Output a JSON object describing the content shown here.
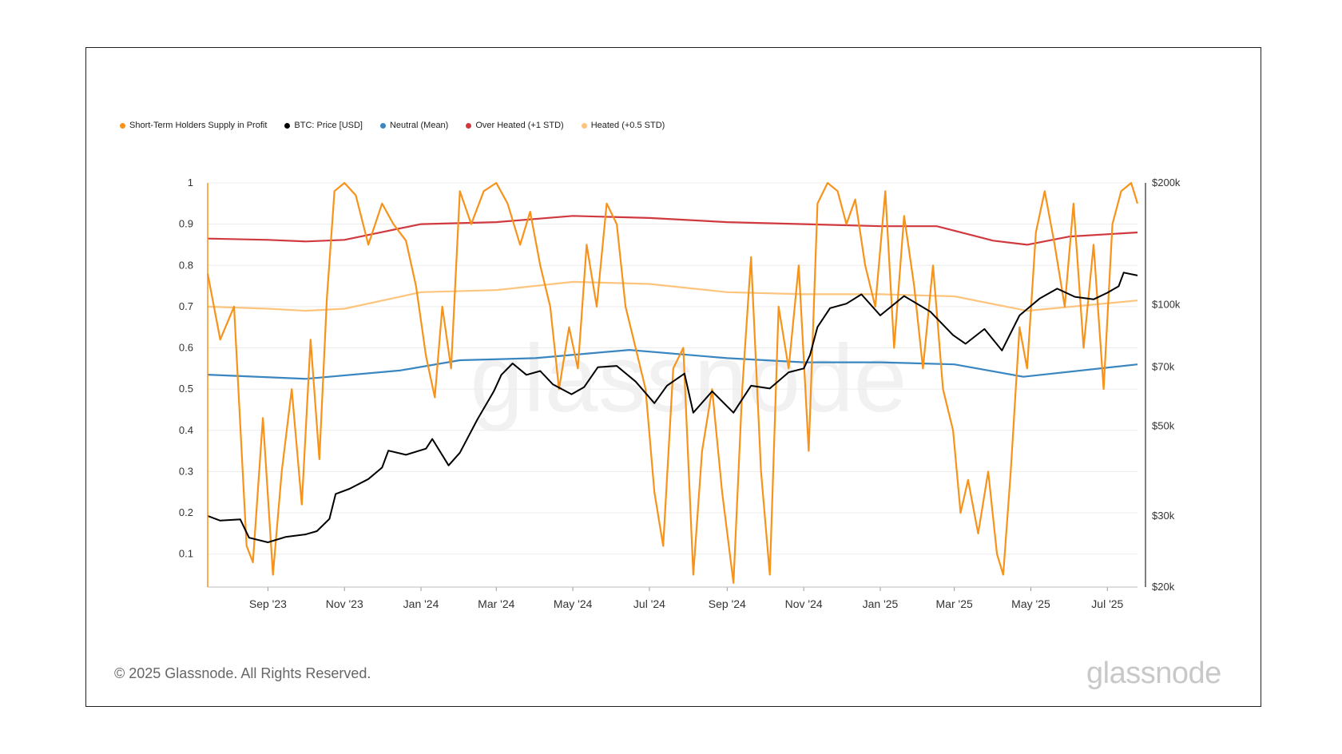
{
  "legend": [
    {
      "label": "Short-Term Holders Supply in Profit",
      "color": "#f7931a"
    },
    {
      "label": "BTC: Price [USD]",
      "color": "#000000"
    },
    {
      "label": "Neutral (Mean)",
      "color": "#3a86c0"
    },
    {
      "label": "Over Heated (+1 STD)",
      "color": "#d0393e"
    },
    {
      "label": "Heated (+0.5 STD)",
      "color": "#fcc47c"
    }
  ],
  "footer": {
    "copyright": "© 2025 Glassnode. All Rights Reserved.",
    "brand": "glassnode",
    "watermark": "glassnode"
  },
  "chart_data": {
    "type": "line",
    "x_ticks": [
      "Sep '23",
      "Nov '23",
      "Jan '24",
      "Mar '24",
      "May '24",
      "Jul '24",
      "Sep '24",
      "Nov '24",
      "Jan '25",
      "Mar '25",
      "May '25",
      "Jul '25"
    ],
    "x_range": [
      "2023-07-15",
      "2025-07-25"
    ],
    "y_left": {
      "ticks": [
        "1",
        "0.9",
        "0.8",
        "0.7",
        "0.6",
        "0.5",
        "0.4",
        "0.3",
        "0.2",
        "0.1"
      ],
      "range": [
        0.02,
        1.0
      ]
    },
    "y_right": {
      "scale": "log",
      "ticks": [
        "$200k",
        "$100k",
        "$70k",
        "$50k",
        "$30k",
        "$20k"
      ],
      "range": [
        20000,
        200000
      ]
    },
    "grid": true,
    "legend_position": "top-left",
    "series": [
      {
        "name": "Short-Term Holders Supply in Profit",
        "axis": "left",
        "color": "#f7931a",
        "x": [
          "2023-07-15",
          "2023-07-25",
          "2023-08-05",
          "2023-08-15",
          "2023-08-20",
          "2023-08-28",
          "2023-09-05",
          "2023-09-12",
          "2023-09-20",
          "2023-09-28",
          "2023-10-05",
          "2023-10-12",
          "2023-10-18",
          "2023-10-24",
          "2023-11-01",
          "2023-11-10",
          "2023-11-20",
          "2023-12-01",
          "2023-12-10",
          "2023-12-20",
          "2023-12-28",
          "2024-01-05",
          "2024-01-12",
          "2024-01-18",
          "2024-01-25",
          "2024-02-01",
          "2024-02-10",
          "2024-02-20",
          "2024-03-01",
          "2024-03-10",
          "2024-03-20",
          "2024-03-28",
          "2024-04-05",
          "2024-04-13",
          "2024-04-20",
          "2024-04-28",
          "2024-05-05",
          "2024-05-12",
          "2024-05-20",
          "2024-05-28",
          "2024-06-05",
          "2024-06-12",
          "2024-06-20",
          "2024-06-28",
          "2024-07-05",
          "2024-07-12",
          "2024-07-20",
          "2024-07-28",
          "2024-08-05",
          "2024-08-12",
          "2024-08-20",
          "2024-08-28",
          "2024-09-06",
          "2024-09-13",
          "2024-09-20",
          "2024-09-28",
          "2024-10-05",
          "2024-10-12",
          "2024-10-20",
          "2024-10-28",
          "2024-11-05",
          "2024-11-12",
          "2024-11-20",
          "2024-11-28",
          "2024-12-05",
          "2024-12-12",
          "2024-12-20",
          "2024-12-28",
          "2025-01-05",
          "2025-01-12",
          "2025-01-20",
          "2025-01-28",
          "2025-02-04",
          "2025-02-12",
          "2025-02-20",
          "2025-02-28",
          "2025-03-06",
          "2025-03-12",
          "2025-03-20",
          "2025-03-28",
          "2025-04-04",
          "2025-04-09",
          "2025-04-15",
          "2025-04-22",
          "2025-04-28",
          "2025-05-05",
          "2025-05-12",
          "2025-05-20",
          "2025-05-28",
          "2025-06-04",
          "2025-06-12",
          "2025-06-20",
          "2025-06-28",
          "2025-07-05",
          "2025-07-12",
          "2025-07-20",
          "2025-07-25"
        ],
        "y": [
          0.78,
          0.62,
          0.7,
          0.12,
          0.08,
          0.43,
          0.05,
          0.3,
          0.5,
          0.22,
          0.62,
          0.33,
          0.72,
          0.98,
          1.0,
          0.97,
          0.85,
          0.95,
          0.9,
          0.86,
          0.75,
          0.58,
          0.48,
          0.7,
          0.55,
          0.98,
          0.9,
          0.98,
          1.0,
          0.95,
          0.85,
          0.93,
          0.8,
          0.7,
          0.5,
          0.65,
          0.55,
          0.85,
          0.7,
          0.95,
          0.9,
          0.7,
          0.6,
          0.5,
          0.25,
          0.12,
          0.55,
          0.6,
          0.05,
          0.35,
          0.5,
          0.25,
          0.03,
          0.5,
          0.82,
          0.3,
          0.05,
          0.7,
          0.55,
          0.8,
          0.35,
          0.95,
          1.0,
          0.98,
          0.9,
          0.96,
          0.8,
          0.7,
          0.98,
          0.6,
          0.92,
          0.75,
          0.55,
          0.8,
          0.5,
          0.4,
          0.2,
          0.28,
          0.15,
          0.3,
          0.1,
          0.05,
          0.3,
          0.65,
          0.55,
          0.88,
          0.98,
          0.85,
          0.7,
          0.95,
          0.6,
          0.85,
          0.5,
          0.9,
          0.98,
          1.0,
          0.95
        ]
      },
      {
        "name": "BTC: Price [USD]",
        "axis": "right",
        "color": "#000000",
        "x": [
          "2023-07-15",
          "2023-07-25",
          "2023-08-10",
          "2023-08-17",
          "2023-09-01",
          "2023-09-15",
          "2023-10-01",
          "2023-10-10",
          "2023-10-20",
          "2023-10-25",
          "2023-11-05",
          "2023-11-20",
          "2023-12-01",
          "2023-12-06",
          "2023-12-20",
          "2024-01-05",
          "2024-01-10",
          "2024-01-23",
          "2024-02-01",
          "2024-02-15",
          "2024-02-28",
          "2024-03-05",
          "2024-03-14",
          "2024-03-25",
          "2024-04-05",
          "2024-04-15",
          "2024-04-30",
          "2024-05-10",
          "2024-05-21",
          "2024-06-05",
          "2024-06-20",
          "2024-07-05",
          "2024-07-15",
          "2024-07-29",
          "2024-08-05",
          "2024-08-20",
          "2024-09-06",
          "2024-09-20",
          "2024-10-05",
          "2024-10-20",
          "2024-11-01",
          "2024-11-06",
          "2024-11-12",
          "2024-11-22",
          "2024-12-05",
          "2024-12-17",
          "2025-01-01",
          "2025-01-20",
          "2025-02-10",
          "2025-02-28",
          "2025-03-10",
          "2025-03-25",
          "2025-04-08",
          "2025-04-22",
          "2025-05-08",
          "2025-05-22",
          "2025-06-05",
          "2025-06-20",
          "2025-07-01",
          "2025-07-10",
          "2025-07-14",
          "2025-07-25"
        ],
        "y": [
          30000,
          29200,
          29400,
          26500,
          25800,
          26600,
          27000,
          27500,
          29500,
          34000,
          35000,
          37000,
          39500,
          43500,
          42500,
          44000,
          46500,
          40000,
          43000,
          52000,
          61000,
          67000,
          71500,
          67000,
          68500,
          63500,
          60000,
          62500,
          70000,
          70500,
          64500,
          57000,
          63000,
          67500,
          54000,
          61000,
          54000,
          63000,
          62000,
          68000,
          69500,
          75000,
          88000,
          98000,
          100500,
          106000,
          94000,
          105000,
          96000,
          84000,
          80000,
          87000,
          77000,
          94000,
          103500,
          109500,
          104500,
          103000,
          107000,
          111000,
          120000,
          118000
        ]
      },
      {
        "name": "Neutral (Mean)",
        "axis": "left",
        "color": "#3a86c0",
        "x": [
          "2023-07-15",
          "2023-10-01",
          "2023-12-15",
          "2024-02-01",
          "2024-04-01",
          "2024-06-15",
          "2024-09-01",
          "2024-11-01",
          "2025-01-01",
          "2025-03-01",
          "2025-04-25",
          "2025-07-25"
        ],
        "y": [
          0.535,
          0.525,
          0.545,
          0.57,
          0.575,
          0.595,
          0.575,
          0.565,
          0.565,
          0.56,
          0.53,
          0.56
        ]
      },
      {
        "name": "Over Heated (+1 STD)",
        "axis": "left",
        "color": "#d0393e",
        "x": [
          "2023-07-15",
          "2023-09-01",
          "2023-10-01",
          "2023-11-01",
          "2024-01-01",
          "2024-03-01",
          "2024-05-01",
          "2024-07-01",
          "2024-09-01",
          "2024-11-01",
          "2025-01-01",
          "2025-02-15",
          "2025-04-01",
          "2025-04-28",
          "2025-06-01",
          "2025-07-25"
        ],
        "y": [
          0.865,
          0.862,
          0.858,
          0.862,
          0.9,
          0.905,
          0.92,
          0.915,
          0.905,
          0.9,
          0.895,
          0.895,
          0.86,
          0.85,
          0.87,
          0.88
        ]
      },
      {
        "name": "Heated (+0.5 STD)",
        "axis": "left",
        "color": "#fcc47c",
        "x": [
          "2023-07-15",
          "2023-09-01",
          "2023-10-01",
          "2023-11-01",
          "2024-01-01",
          "2024-03-01",
          "2024-05-01",
          "2024-07-01",
          "2024-09-01",
          "2024-11-01",
          "2025-01-01",
          "2025-03-01",
          "2025-04-28",
          "2025-07-25"
        ],
        "y": [
          0.7,
          0.695,
          0.69,
          0.695,
          0.735,
          0.74,
          0.76,
          0.755,
          0.735,
          0.73,
          0.73,
          0.725,
          0.69,
          0.715
        ]
      }
    ]
  }
}
